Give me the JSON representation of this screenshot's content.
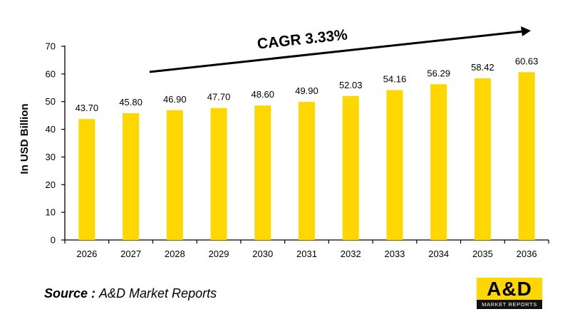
{
  "chart_data": {
    "type": "bar",
    "categories": [
      "2026",
      "2027",
      "2028",
      "2029",
      "2030",
      "2031",
      "2032",
      "2033",
      "2034",
      "2035",
      "2036"
    ],
    "values": [
      43.7,
      45.8,
      46.9,
      47.7,
      48.6,
      49.9,
      52.03,
      54.16,
      56.29,
      58.42,
      60.63
    ],
    "value_labels": [
      "43.70",
      "45.80",
      "46.90",
      "47.70",
      "48.60",
      "49.90",
      "52.03",
      "54.16",
      "56.29",
      "58.42",
      "60.63"
    ],
    "ylabel": "In USD Billion",
    "ylim": [
      0,
      70
    ],
    "yticks": [
      0,
      10,
      20,
      30,
      40,
      50,
      60,
      70
    ],
    "annotation": "CAGR 3.33%",
    "bar_color": "#ffd700",
    "grid": false
  },
  "source": {
    "prefix": "Source : ",
    "name": "A&D Market Reports"
  },
  "logo": {
    "mark": "A&D",
    "tagline": "MARKET REPORTS"
  }
}
